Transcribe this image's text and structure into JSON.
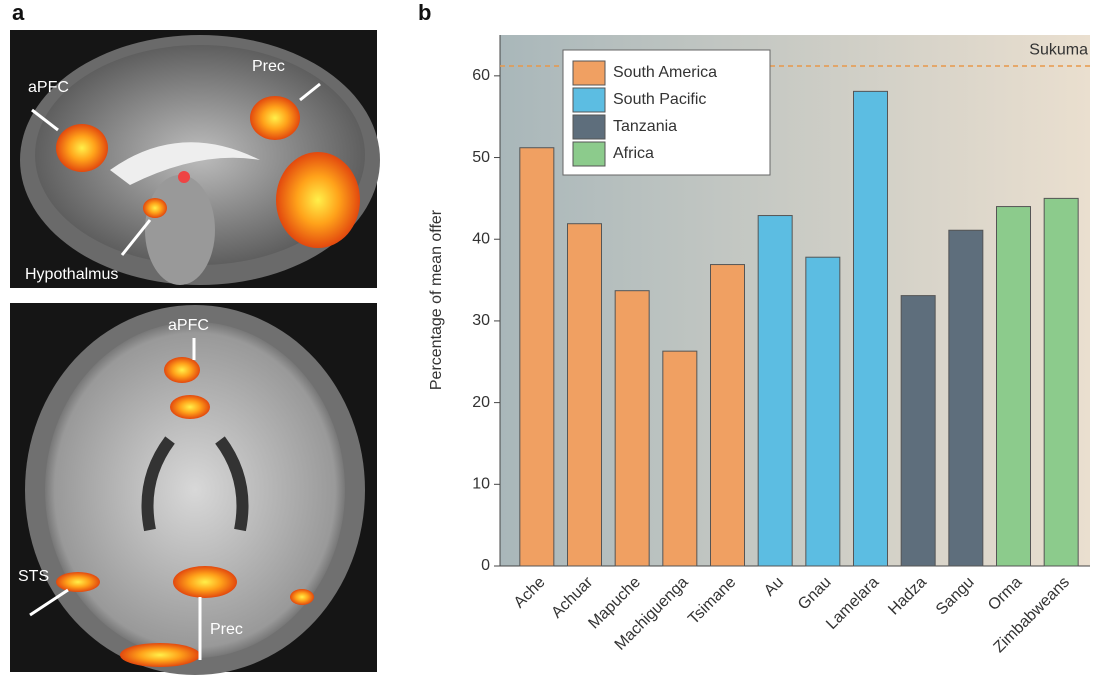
{
  "panel_a": {
    "label": "a",
    "images": [
      {
        "labels": [
          "aPFC",
          "Prec",
          "Hypothalmus"
        ]
      },
      {
        "labels": [
          "aPFC",
          "STS",
          "Prec"
        ]
      }
    ]
  },
  "chart_data": {
    "type": "bar",
    "panel_label": "b",
    "y_label": "Percentage of mean offer",
    "categories": [
      "Ache",
      "Achuar",
      "Mapuche",
      "Machiguenga",
      "Tsimane",
      "Au",
      "Gnau",
      "Lamelara",
      "Hadza",
      "Sangu",
      "Orma",
      "Zimbabweans"
    ],
    "series": [
      {
        "name": "South America",
        "color": "#f0a062",
        "values": [
          51.2,
          41.9,
          33.7,
          26.3,
          36.9,
          null,
          null,
          null,
          null,
          null,
          null,
          null
        ]
      },
      {
        "name": "South Pacific",
        "color": "#5cbde2",
        "values": [
          null,
          null,
          null,
          null,
          null,
          42.9,
          37.8,
          58.1,
          null,
          null,
          null,
          null
        ]
      },
      {
        "name": "Tanzania",
        "color": "#5e6e7c",
        "values": [
          null,
          null,
          null,
          null,
          null,
          null,
          null,
          null,
          33.1,
          41.1,
          null,
          null
        ]
      },
      {
        "name": "Africa",
        "color": "#8ccb8c",
        "values": [
          null,
          null,
          null,
          null,
          null,
          null,
          null,
          null,
          null,
          null,
          44.0,
          45.0
        ]
      }
    ],
    "reference_line": {
      "label": "Sukuma",
      "value": 61.2,
      "color": "#e8984a"
    },
    "ylim": [
      0,
      65
    ],
    "yticks": [
      0,
      10,
      20,
      30,
      40,
      50,
      60
    ],
    "legend": "upper-left"
  }
}
